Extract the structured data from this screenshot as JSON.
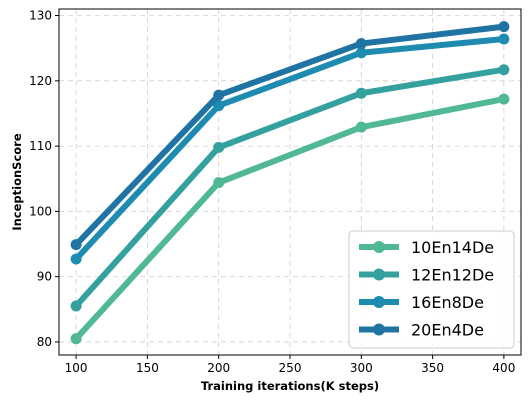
{
  "chart_data": {
    "type": "line",
    "xlabel": "Training iterations(K steps)",
    "ylabel": "InceptionScore",
    "x": [
      100,
      200,
      300,
      400
    ],
    "xlim": [
      88,
      412
    ],
    "ylim": [
      78,
      131
    ],
    "xticks": [
      "100",
      "150",
      "200",
      "250",
      "300",
      "350",
      "400"
    ],
    "yticks": [
      "80",
      "90",
      "100",
      "110",
      "120",
      "130"
    ],
    "grid": true,
    "legend_position": "lower-right",
    "series": [
      {
        "name": "10En14De",
        "color": "#50b897",
        "values": [
          80.5,
          104.4,
          112.9,
          117.2
        ]
      },
      {
        "name": "12En12De",
        "color": "#35a19f",
        "values": [
          85.5,
          109.8,
          118.1,
          121.7
        ]
      },
      {
        "name": "16En8De",
        "color": "#1e8cb0",
        "values": [
          92.7,
          116.2,
          124.3,
          126.4
        ]
      },
      {
        "name": "20En4De",
        "color": "#1f74a3",
        "values": [
          94.9,
          117.8,
          125.7,
          128.3
        ]
      }
    ]
  }
}
